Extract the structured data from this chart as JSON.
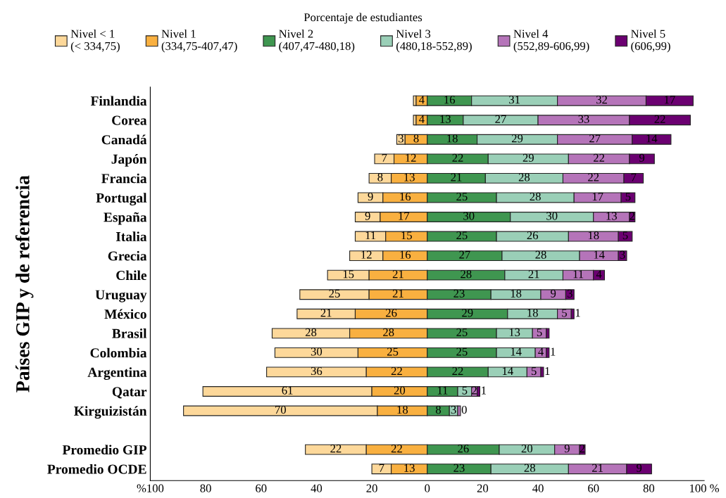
{
  "chart_data": {
    "type": "bar",
    "orientation": "horizontal",
    "legend_title": "Porcentaje de estudiantes",
    "ylabel": "Países GIP y de referencia",
    "legend": "top",
    "categories": [
      "Finlandia",
      "Corea",
      "Canadá",
      "Japón",
      "Francia",
      "Portugal",
      "España",
      "Italia",
      "Grecia",
      "Chile",
      "Uruguay",
      "México",
      "Brasil",
      "Colombia",
      "Argentina",
      "Qatar",
      "Kirguizistán",
      null,
      "Promedio GIP",
      "Promedio OCDE"
    ],
    "xlim": [
      -100,
      100
    ],
    "xticks": [
      {
        "value": -100,
        "label": "%100"
      },
      {
        "value": -80,
        "label": "80"
      },
      {
        "value": -60,
        "label": "60"
      },
      {
        "value": -40,
        "label": "40"
      },
      {
        "value": -20,
        "label": "20"
      },
      0,
      20,
      40,
      60,
      80,
      {
        "value": 100,
        "label": "100 %"
      }
    ],
    "series": [
      {
        "name": "Nivel < 1\n(< 334,75)",
        "color": "#fdd89a",
        "values": [
          1,
          1,
          3,
          7,
          8,
          9,
          9,
          11,
          12,
          15,
          25,
          21,
          28,
          30,
          36,
          61,
          70,
          null,
          22,
          7
        ],
        "base": [
          -5,
          -5,
          -11,
          -19,
          -21,
          -25,
          -26,
          -26,
          -28,
          -36,
          -46,
          -47,
          -56,
          -55,
          -58,
          -81,
          -88,
          null,
          -44,
          -20
        ],
        "value_labels": [
          null,
          null,
          "3",
          "7",
          "8",
          "9",
          "9",
          "11",
          "12",
          "15",
          "25",
          "21",
          "28",
          "30",
          "36",
          "61",
          "70",
          null,
          "22",
          "7"
        ]
      },
      {
        "name": "Nivel 1\n(334,75-407,47)",
        "color": "#f9b040",
        "values": [
          4,
          4,
          8,
          12,
          13,
          16,
          17,
          15,
          16,
          21,
          21,
          26,
          28,
          25,
          22,
          20,
          18,
          null,
          22,
          13
        ],
        "base": [
          -4,
          -4,
          -8,
          -12,
          -13,
          -16,
          -17,
          -15,
          -16,
          -21,
          -21,
          -26,
          -28,
          -25,
          -22,
          -20,
          -18,
          null,
          -22,
          -13
        ],
        "value_labels": [
          "4",
          "4",
          "8",
          "12",
          "13",
          "16",
          "17",
          "15",
          "16",
          "21",
          "21",
          "26",
          "28",
          "25",
          "22",
          "20",
          "18",
          null,
          "22",
          "13"
        ]
      },
      {
        "name": "Nivel 2\n(407,47-480,18)",
        "color": "#3f9650",
        "values": [
          16,
          13,
          18,
          22,
          21,
          25,
          30,
          25,
          27,
          28,
          23,
          29,
          25,
          25,
          22,
          11,
          8,
          null,
          26,
          23
        ],
        "base": [
          0,
          0,
          0,
          0,
          0,
          0,
          0,
          0,
          0,
          0,
          0,
          0,
          0,
          0,
          0,
          0,
          0,
          null,
          0,
          0
        ],
        "value_labels": [
          "16",
          "13",
          "18",
          "22",
          "21",
          "25",
          "30",
          "25",
          "27",
          "28",
          "23",
          "29",
          "25",
          "25",
          "22",
          "11",
          "8",
          null,
          "26",
          "23"
        ]
      },
      {
        "name": "Nivel 3\n(480,18-552,89)",
        "color": "#9acfb7",
        "values": [
          31,
          27,
          29,
          29,
          28,
          28,
          30,
          26,
          28,
          21,
          18,
          18,
          13,
          14,
          14,
          5,
          3,
          null,
          20,
          28
        ],
        "base": [
          16,
          13,
          18,
          22,
          21,
          25,
          30,
          25,
          27,
          28,
          23,
          29,
          25,
          25,
          22,
          11,
          8,
          null,
          26,
          23
        ],
        "value_labels": [
          "31",
          "27",
          "29",
          "29",
          "28",
          "28",
          "30",
          "26",
          "28",
          "21",
          "18",
          "18",
          "13",
          "14",
          "14",
          "5",
          "3",
          null,
          "20",
          "28"
        ]
      },
      {
        "name": "Nivel 4\n(552,89-606,99)",
        "color": "#b574b9",
        "values": [
          32,
          33,
          27,
          22,
          22,
          17,
          13,
          18,
          14,
          11,
          9,
          5,
          5,
          4,
          5,
          2,
          1,
          null,
          9,
          21
        ],
        "base": [
          47,
          40,
          47,
          51,
          49,
          53,
          60,
          51,
          55,
          49,
          41,
          47,
          38,
          39,
          36,
          16,
          11,
          null,
          46,
          51
        ],
        "value_labels": [
          "32",
          "33",
          "27",
          "22",
          "22",
          "17",
          "13",
          "18",
          "14",
          "11",
          "9",
          "5",
          "5",
          "4",
          "5",
          "2",
          null,
          null,
          "9",
          "21"
        ]
      },
      {
        "name": "Nivel 5\n(606,99)",
        "color": "#6b0071",
        "values": [
          17,
          22,
          14,
          9,
          7,
          5,
          2,
          5,
          3,
          4,
          3,
          1,
          1,
          1,
          1,
          1,
          0,
          null,
          2,
          9
        ],
        "base": [
          79,
          73,
          74,
          73,
          71,
          70,
          73,
          69,
          69,
          60,
          50,
          52,
          43,
          43,
          41,
          18,
          null,
          null,
          55,
          72
        ],
        "value_labels": [
          "17",
          "22",
          "14",
          "9",
          "7",
          "5",
          "2",
          "5",
          "3",
          "4",
          "3",
          "1",
          null,
          "1",
          "1",
          "1",
          "0",
          null,
          "2",
          "9"
        ]
      }
    ]
  }
}
